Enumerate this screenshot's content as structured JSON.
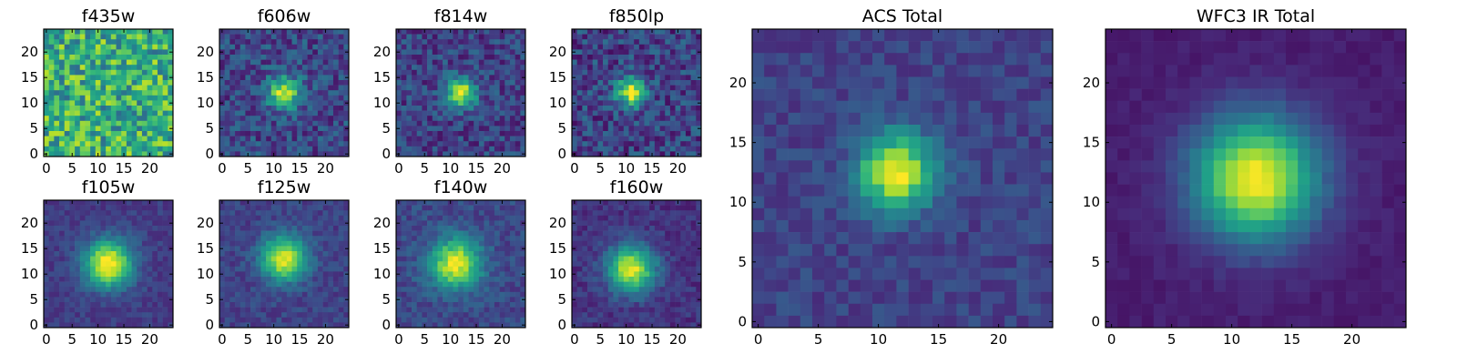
{
  "chart_data": [
    {
      "type": "heatmap",
      "title": "f435w",
      "grid_size": 25,
      "peak": [
        12,
        12
      ],
      "sigma": 0,
      "noise": 0.55,
      "base": 0.35,
      "amp": 0.0,
      "seed": 11,
      "xticks": [
        0,
        5,
        10,
        15,
        20
      ],
      "yticks": [
        0,
        5,
        10,
        15,
        20
      ],
      "xlim": [
        0,
        24
      ],
      "ylim": [
        0,
        24
      ]
    },
    {
      "type": "heatmap",
      "title": "f606w",
      "grid_size": 25,
      "peak": [
        12,
        12
      ],
      "sigma": 2.2,
      "noise": 0.32,
      "base": 0.22,
      "amp": 0.7,
      "seed": 23,
      "xticks": [
        0,
        5,
        10,
        15,
        20
      ],
      "yticks": [
        0,
        5,
        10,
        15,
        20
      ],
      "xlim": [
        0,
        24
      ],
      "ylim": [
        0,
        24
      ]
    },
    {
      "type": "heatmap",
      "title": "f814w",
      "grid_size": 25,
      "peak": [
        12,
        12
      ],
      "sigma": 2.0,
      "noise": 0.3,
      "base": 0.2,
      "amp": 0.75,
      "seed": 37,
      "xticks": [
        0,
        5,
        10,
        15,
        20
      ],
      "yticks": [
        0,
        5,
        10,
        15,
        20
      ],
      "xlim": [
        0,
        24
      ],
      "ylim": [
        0,
        24
      ]
    },
    {
      "type": "heatmap",
      "title": "f850lp",
      "grid_size": 25,
      "peak": [
        11,
        12
      ],
      "sigma": 2.0,
      "noise": 0.34,
      "base": 0.2,
      "amp": 0.75,
      "seed": 41,
      "xticks": [
        0,
        5,
        10,
        15,
        20
      ],
      "yticks": [
        0,
        5,
        10,
        15,
        20
      ],
      "xlim": [
        0,
        24
      ],
      "ylim": [
        0,
        24
      ]
    },
    {
      "type": "heatmap",
      "title": "f105w",
      "grid_size": 25,
      "peak": [
        12,
        12
      ],
      "sigma": 3.2,
      "noise": 0.14,
      "base": 0.18,
      "amp": 0.85,
      "seed": 53,
      "xticks": [
        0,
        5,
        10,
        15,
        20
      ],
      "yticks": [
        0,
        5,
        10,
        15,
        20
      ],
      "xlim": [
        0,
        24
      ],
      "ylim": [
        0,
        24
      ]
    },
    {
      "type": "heatmap",
      "title": "f125w",
      "grid_size": 25,
      "peak": [
        12,
        13
      ],
      "sigma": 3.0,
      "noise": 0.16,
      "base": 0.2,
      "amp": 0.78,
      "seed": 61,
      "xticks": [
        0,
        5,
        10,
        15,
        20
      ],
      "yticks": [
        0,
        5,
        10,
        15,
        20
      ],
      "xlim": [
        0,
        24
      ],
      "ylim": [
        0,
        24
      ]
    },
    {
      "type": "heatmap",
      "title": "f140w",
      "grid_size": 25,
      "peak": [
        11,
        12
      ],
      "sigma": 3.4,
      "noise": 0.18,
      "base": 0.22,
      "amp": 0.75,
      "seed": 71,
      "xticks": [
        0,
        5,
        10,
        15,
        20
      ],
      "yticks": [
        0,
        5,
        10,
        15,
        20
      ],
      "xlim": [
        0,
        24
      ],
      "ylim": [
        0,
        24
      ]
    },
    {
      "type": "heatmap",
      "title": "f160w",
      "grid_size": 25,
      "peak": [
        11,
        11
      ],
      "sigma": 3.2,
      "noise": 0.16,
      "base": 0.15,
      "amp": 0.8,
      "seed": 83,
      "xticks": [
        0,
        5,
        10,
        15,
        20
      ],
      "yticks": [
        0,
        5,
        10,
        15,
        20
      ],
      "xlim": [
        0,
        24
      ],
      "ylim": [
        0,
        24
      ]
    },
    {
      "type": "heatmap",
      "title": "ACS Total",
      "grid_size": 25,
      "peak": [
        11.5,
        12.5
      ],
      "sigma": 2.2,
      "noise": 0.16,
      "base": 0.2,
      "amp": 0.8,
      "seed": 97,
      "xticks": [
        0,
        5,
        10,
        15,
        20
      ],
      "yticks": [
        0,
        5,
        10,
        15,
        20
      ],
      "xlim": [
        0,
        24
      ],
      "ylim": [
        0,
        24
      ]
    },
    {
      "type": "heatmap",
      "title": "WFC3 IR Total",
      "grid_size": 25,
      "peak": [
        12,
        12
      ],
      "sigma": 3.6,
      "noise": 0.06,
      "base": 0.08,
      "amp": 0.92,
      "seed": 109,
      "xticks": [
        0,
        5,
        10,
        15,
        20
      ],
      "yticks": [
        0,
        5,
        10,
        15,
        20
      ],
      "xlim": [
        0,
        24
      ],
      "ylim": [
        0,
        24
      ]
    }
  ],
  "colormap": [
    "#440154",
    "#482878",
    "#3e4989",
    "#31688e",
    "#26828e",
    "#1f9e89",
    "#35b779",
    "#6ece58",
    "#b5de2b",
    "#fde725"
  ]
}
